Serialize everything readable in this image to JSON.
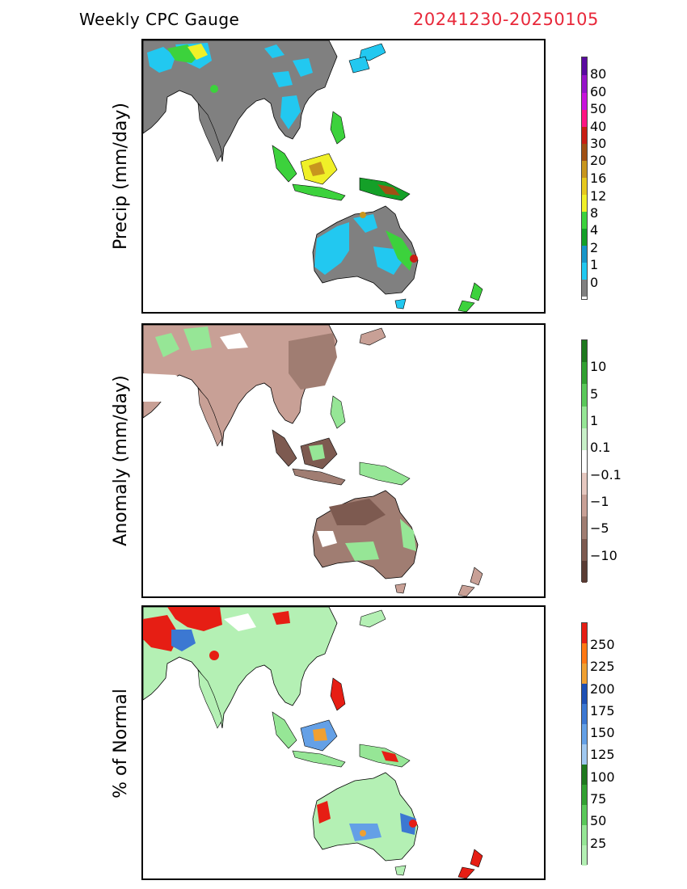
{
  "header": {
    "title": "Weekly CPC Gauge",
    "date_range": "20241230-20250105"
  },
  "panels": [
    {
      "id": "precip",
      "ylabel": "Precip (mm/day)",
      "colorbar": {
        "colors": [
          "#808080",
          "#22c8f0",
          "#1896c8",
          "#14a028",
          "#3cd23c",
          "#f0f028",
          "#e6c81e",
          "#c8961e",
          "#a05014",
          "#c81e14",
          "#ff1482",
          "#c814dc",
          "#9614c8",
          "#5a0aa0"
        ],
        "labels": [
          "0",
          "1",
          "2",
          "4",
          "8",
          "12",
          "16",
          "20",
          "30",
          "40",
          "50",
          "60",
          "80"
        ]
      }
    },
    {
      "id": "anomaly",
      "ylabel": "Anomaly (mm/day)",
      "colorbar": {
        "colors": [
          "#5a3c34",
          "#7d5a50",
          "#a07d72",
          "#c8a096",
          "#e6c8c0",
          "#ffffff",
          "#c8f0c8",
          "#96e696",
          "#5ac85a",
          "#32a032",
          "#1e781e"
        ],
        "labels": [
          "10",
          "5",
          "1",
          "0.1",
          "−0.1",
          "−1",
          "−5",
          "−10"
        ]
      }
    },
    {
      "id": "percent",
      "ylabel": "% of Normal",
      "colorbar": {
        "colors": [
          "#b4f0b4",
          "#96e696",
          "#5ac85a",
          "#32a032",
          "#1e781e",
          "#a0c8f0",
          "#64a0e6",
          "#3c78d2",
          "#1e50b4",
          "#f0a032",
          "#ff7814",
          "#e61e14"
        ],
        "labels": [
          "250",
          "225",
          "200",
          "175",
          "150",
          "125",
          "100",
          "75",
          "50",
          "25"
        ]
      }
    }
  ]
}
